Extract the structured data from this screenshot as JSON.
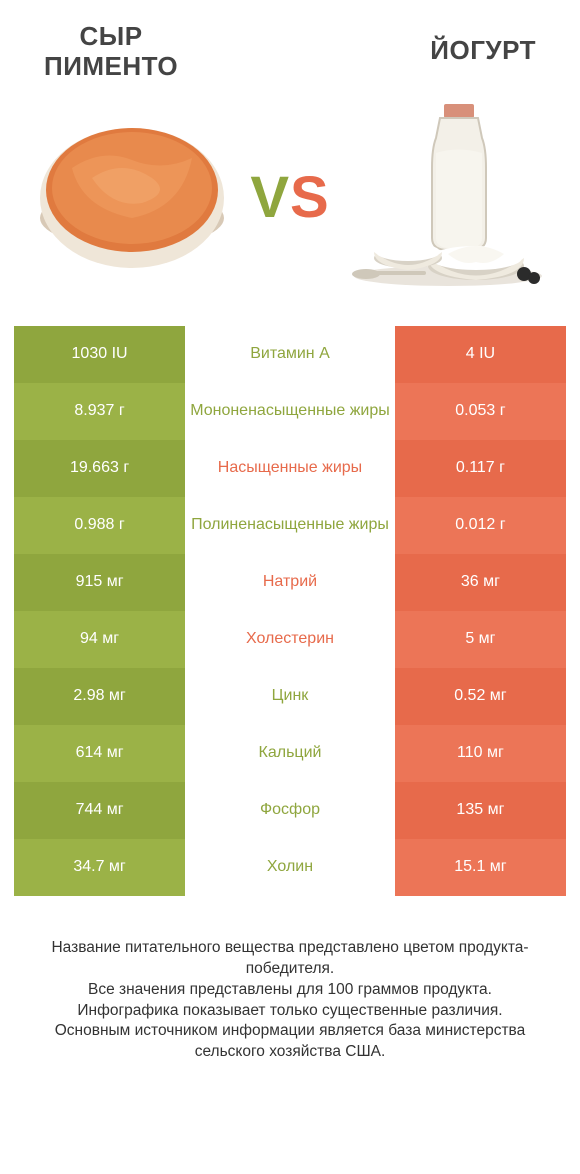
{
  "colors": {
    "left_product": "#8fa63e",
    "left_product_alt": "#9bb247",
    "right_product": "#e76a4b",
    "right_product_alt": "#ec7557",
    "text_dark": "#444444",
    "background": "#ffffff"
  },
  "header": {
    "left_title_line1": "СЫР",
    "left_title_line2": "ПИМЕНТО",
    "right_title": "ЙОГУРТ",
    "vs_label": "VS"
  },
  "rows": [
    {
      "label": "Витамин A",
      "left": "1030 IU",
      "right": "4 IU",
      "winner": "left"
    },
    {
      "label": "Мононенасыщенные жиры",
      "left": "8.937 г",
      "right": "0.053 г",
      "winner": "left"
    },
    {
      "label": "Насыщенные жиры",
      "left": "19.663 г",
      "right": "0.117 г",
      "winner": "right"
    },
    {
      "label": "Полиненасыщенные жиры",
      "left": "0.988 г",
      "right": "0.012 г",
      "winner": "left"
    },
    {
      "label": "Натрий",
      "left": "915 мг",
      "right": "36 мг",
      "winner": "right"
    },
    {
      "label": "Холестерин",
      "left": "94 мг",
      "right": "5 мг",
      "winner": "right"
    },
    {
      "label": "Цинк",
      "left": "2.98 мг",
      "right": "0.52 мг",
      "winner": "left"
    },
    {
      "label": "Кальций",
      "left": "614 мг",
      "right": "110 мг",
      "winner": "left"
    },
    {
      "label": "Фосфор",
      "left": "744 мг",
      "right": "135 мг",
      "winner": "left"
    },
    {
      "label": "Холин",
      "left": "34.7 мг",
      "right": "15.1 мг",
      "winner": "left"
    }
  ],
  "footer_text": "Название питательного вещества представлено цветом продукта-победителя.\nВсе значения представлены для 100 граммов продукта.\nИнфографика показывает только существенные различия.\nОсновным источником информации является база министерства сельского хозяйства США."
}
